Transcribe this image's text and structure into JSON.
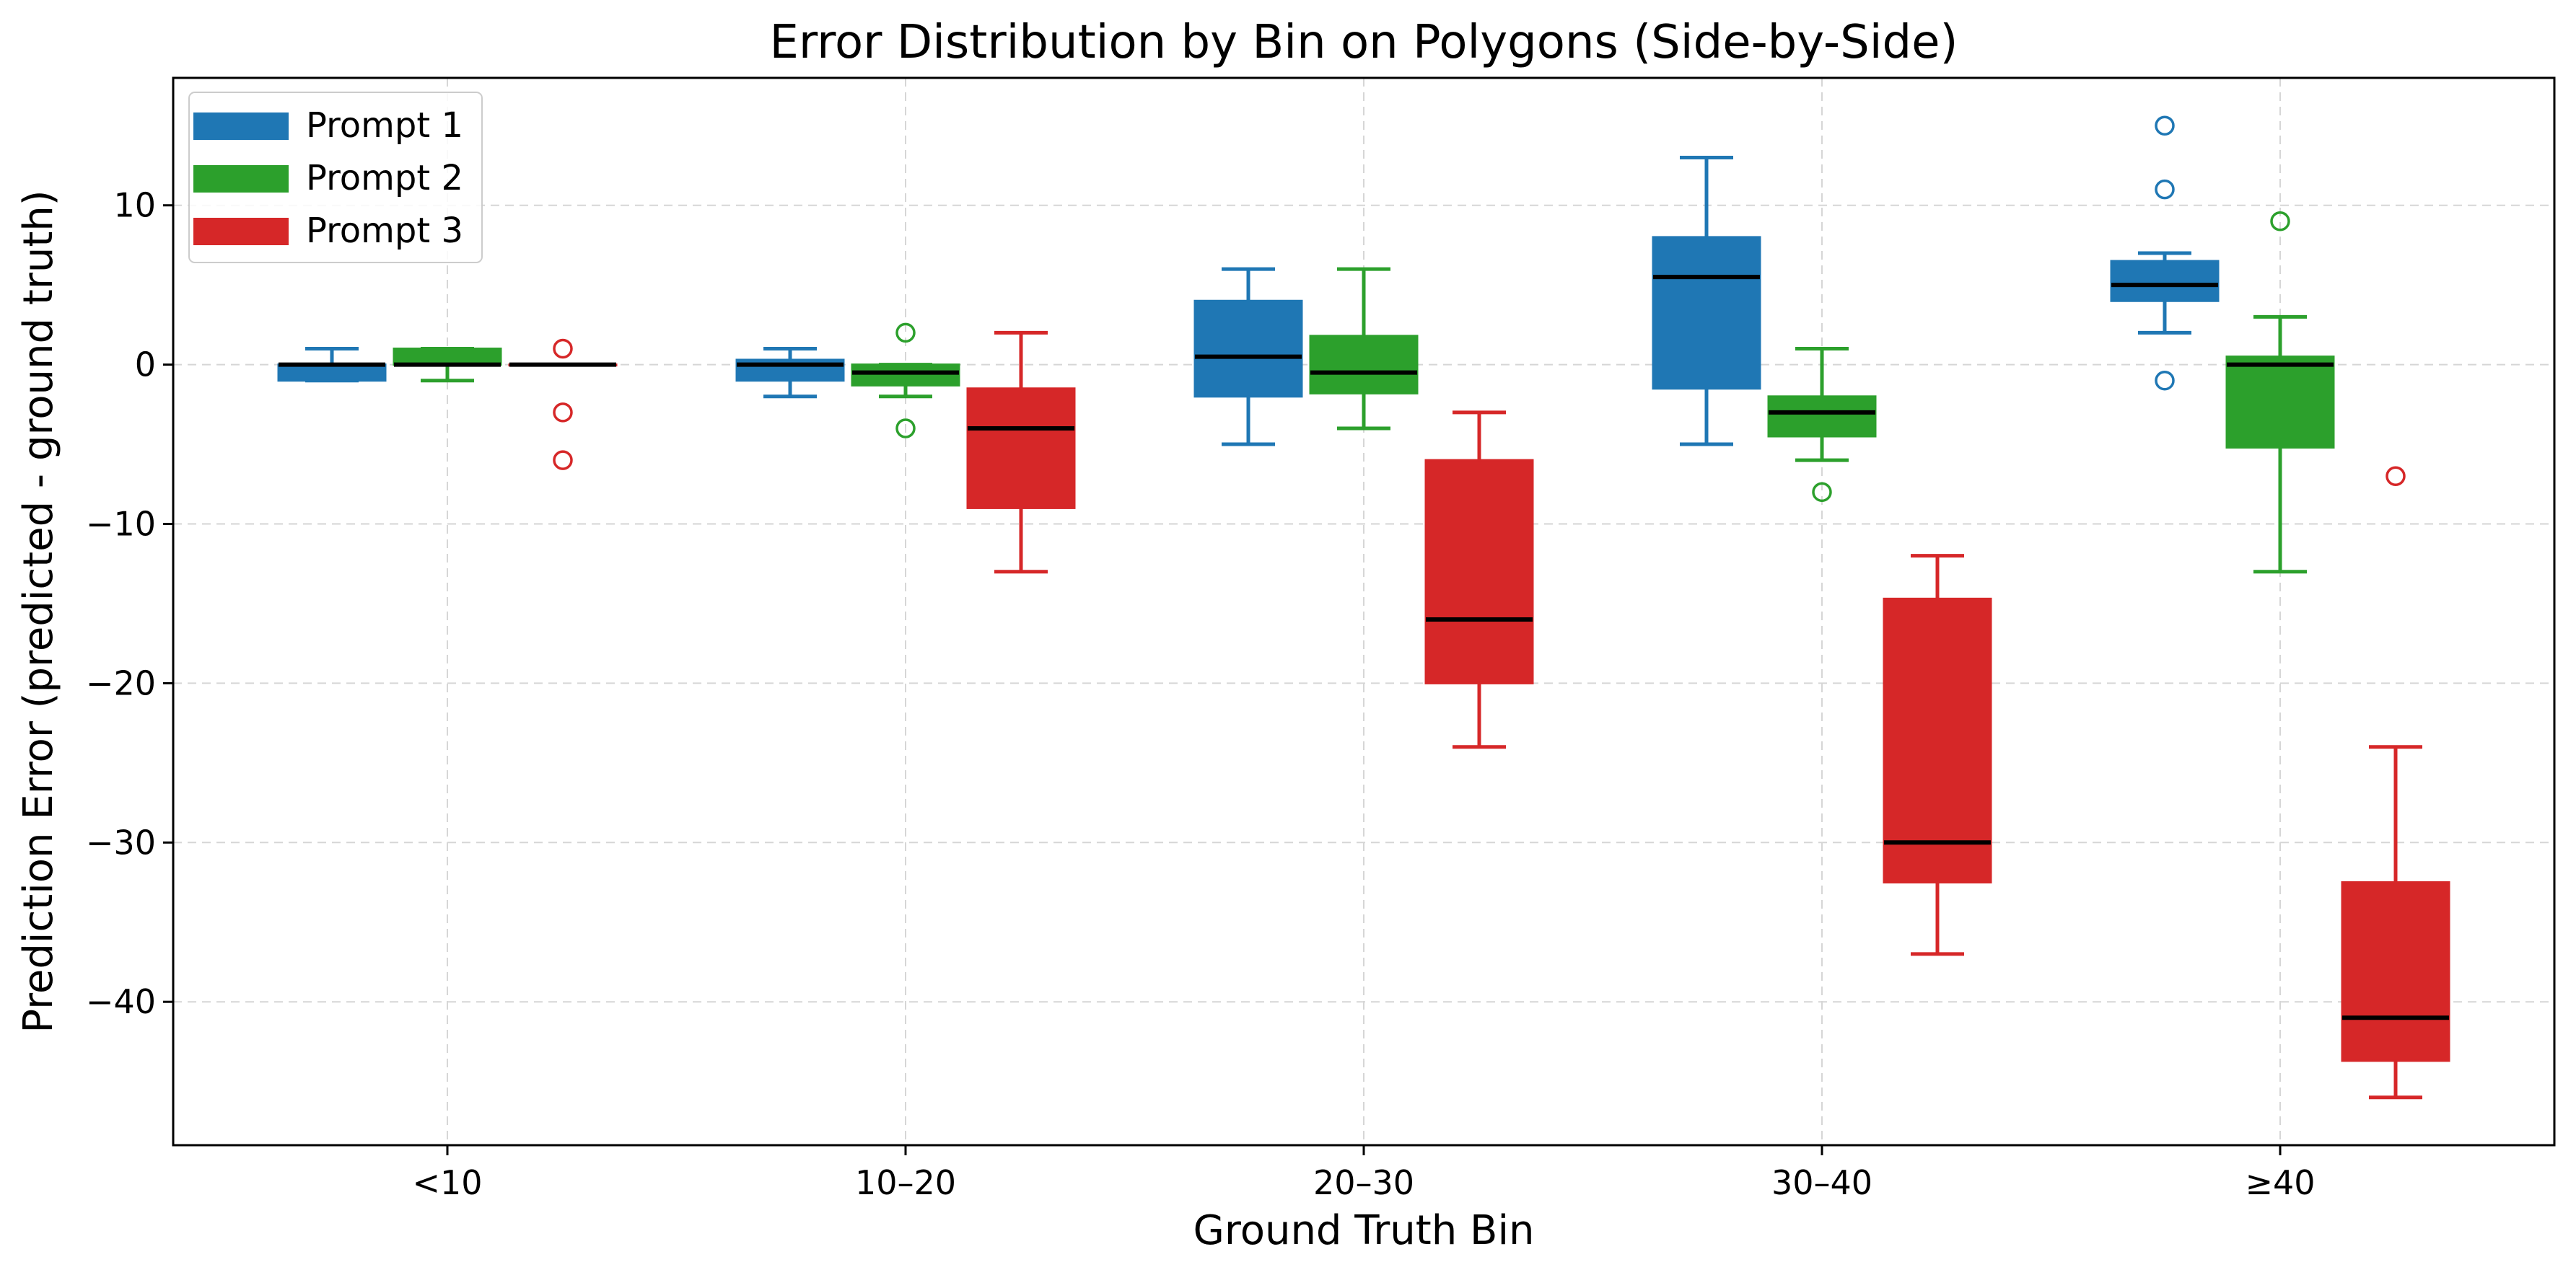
{
  "chart_data": {
    "type": "box",
    "title": "Error Distribution by Bin on Polygons (Side-by-Side)",
    "xlabel": "Ground Truth Bin",
    "ylabel": "Prediction Error (predicted - ground truth)",
    "ylim": [
      -49,
      18
    ],
    "yticks": [
      10,
      0,
      -10,
      -20,
      -30,
      -40
    ],
    "ytick_labels": [
      "10",
      "0",
      "−10",
      "−20",
      "−30",
      "−40"
    ],
    "categories": [
      "<10",
      "10–20",
      "20–30",
      "30–40",
      "≥40"
    ],
    "grid": true,
    "legend_position": "top-left",
    "series": [
      {
        "name": "Prompt 1",
        "color": "#1f77b4",
        "boxes": [
          {
            "whisker_low": -1,
            "q1": -1,
            "median": 0,
            "q3": 0,
            "whisker_high": 1,
            "outliers": []
          },
          {
            "whisker_low": -2,
            "q1": -1,
            "median": 0,
            "q3": 0.3,
            "whisker_high": 1,
            "outliers": []
          },
          {
            "whisker_low": -5,
            "q1": -2,
            "median": 0.5,
            "q3": 4,
            "whisker_high": 6,
            "outliers": []
          },
          {
            "whisker_low": -5,
            "q1": -1.5,
            "median": 5.5,
            "q3": 8,
            "whisker_high": 13,
            "outliers": []
          },
          {
            "whisker_low": 2,
            "q1": 4,
            "median": 5,
            "q3": 6.5,
            "whisker_high": 7,
            "outliers": [
              15,
              11,
              -1
            ]
          }
        ]
      },
      {
        "name": "Prompt 2",
        "color": "#2ca02c",
        "boxes": [
          {
            "whisker_low": -1,
            "q1": 0,
            "median": 0,
            "q3": 1,
            "whisker_high": 1,
            "outliers": []
          },
          {
            "whisker_low": -2,
            "q1": -1.3,
            "median": -0.5,
            "q3": 0,
            "whisker_high": 0,
            "outliers": [
              2,
              -4
            ]
          },
          {
            "whisker_low": -4,
            "q1": -1.8,
            "median": -0.5,
            "q3": 1.8,
            "whisker_high": 6,
            "outliers": []
          },
          {
            "whisker_low": -6,
            "q1": -4.5,
            "median": -3,
            "q3": -2,
            "whisker_high": 1,
            "outliers": [
              -8
            ]
          },
          {
            "whisker_low": -13,
            "q1": -5.2,
            "median": 0,
            "q3": 0.5,
            "whisker_high": 3,
            "outliers": [
              9
            ]
          }
        ]
      },
      {
        "name": "Prompt 3",
        "color": "#d62728",
        "boxes": [
          {
            "whisker_low": 0,
            "q1": 0,
            "median": 0,
            "q3": 0,
            "whisker_high": 0,
            "outliers": [
              1,
              -3,
              -6
            ]
          },
          {
            "whisker_low": -13,
            "q1": -9,
            "median": -4,
            "q3": -1.5,
            "whisker_high": 2,
            "outliers": []
          },
          {
            "whisker_low": -24,
            "q1": -20,
            "median": -16,
            "q3": -6,
            "whisker_high": -3,
            "outliers": []
          },
          {
            "whisker_low": -37,
            "q1": -32.5,
            "median": -30,
            "q3": -14.7,
            "whisker_high": -12,
            "outliers": []
          },
          {
            "whisker_low": -46,
            "q1": -43.7,
            "median": -41,
            "q3": -32.5,
            "whisker_high": -24,
            "outliers": [
              -7
            ]
          }
        ]
      }
    ]
  }
}
